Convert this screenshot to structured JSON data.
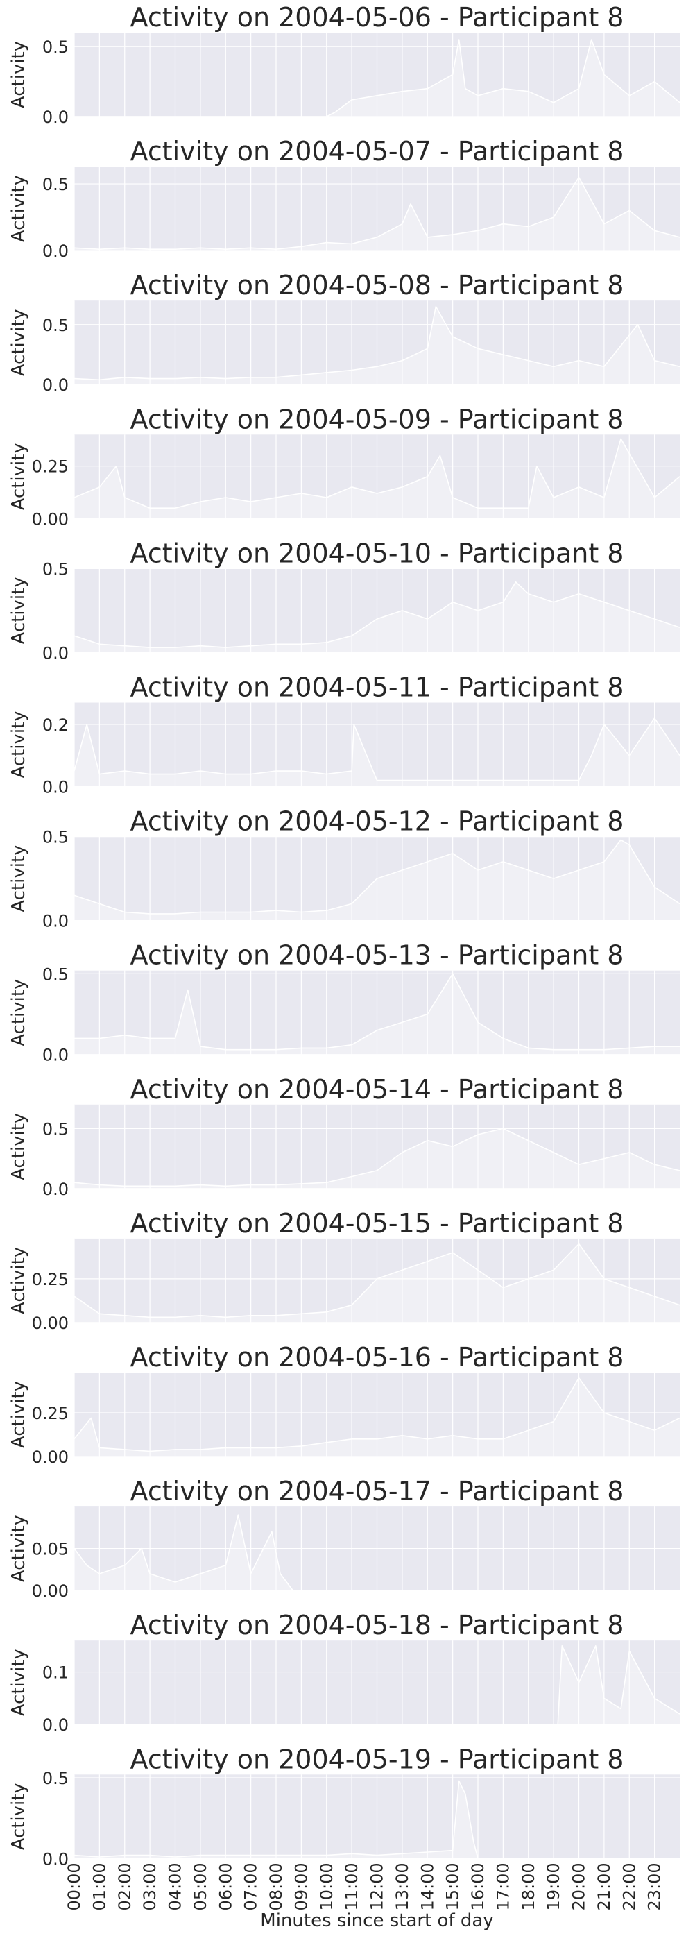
{
  "figure": {
    "x_axis_label": "Minutes since start of day",
    "x_tick_labels": [
      "00:00",
      "01:00",
      "02:00",
      "03:00",
      "04:00",
      "05:00",
      "06:00",
      "07:00",
      "08:00",
      "09:00",
      "10:00",
      "11:00",
      "12:00",
      "13:00",
      "14:00",
      "15:00",
      "16:00",
      "17:00",
      "18:00",
      "19:00",
      "20:00",
      "21:00",
      "22:00",
      "23:00"
    ],
    "y_axis_label": "Activity",
    "colors": {
      "plot_background": "#e8e8f0",
      "grid": "#ffffff",
      "series": "#ffffff",
      "text": "#262626"
    }
  },
  "chart_data": [
    {
      "type": "area",
      "title": "Activity on 2004-05-06 - Participant 8",
      "xlabel": "",
      "ylabel": "Activity",
      "xlim": [
        0,
        1440
      ],
      "ylim": [
        0,
        0.6
      ],
      "y_ticks": [
        0.0,
        0.5
      ],
      "y_tick_labels": [
        "0.0",
        "0.5"
      ],
      "grid": true,
      "series": [
        {
          "x": [
            0,
            60,
            120,
            180,
            240,
            300,
            360,
            420,
            480,
            540,
            600,
            620,
            660,
            720,
            780,
            840,
            900,
            915,
            930,
            960,
            1020,
            1080,
            1140,
            1200,
            1230,
            1260,
            1320,
            1380,
            1440
          ],
          "values": [
            0.0,
            0.0,
            0.0,
            0.0,
            0.0,
            0.0,
            0.0,
            0.0,
            0.0,
            0.0,
            0.0,
            0.03,
            0.12,
            0.15,
            0.18,
            0.2,
            0.3,
            0.55,
            0.2,
            0.15,
            0.2,
            0.18,
            0.1,
            0.2,
            0.55,
            0.3,
            0.15,
            0.25,
            0.1
          ]
        }
      ]
    },
    {
      "type": "area",
      "title": "Activity on 2004-05-07 - Participant 8",
      "xlabel": "",
      "ylabel": "Activity",
      "xlim": [
        0,
        1440
      ],
      "ylim": [
        0,
        0.63
      ],
      "y_ticks": [
        0.0,
        0.5
      ],
      "y_tick_labels": [
        "0.0",
        "0.5"
      ],
      "grid": true,
      "series": [
        {
          "x": [
            0,
            60,
            120,
            180,
            240,
            300,
            360,
            420,
            480,
            540,
            600,
            660,
            720,
            780,
            800,
            840,
            900,
            960,
            1020,
            1080,
            1140,
            1200,
            1260,
            1320,
            1380,
            1440
          ],
          "values": [
            0.02,
            0.01,
            0.02,
            0.01,
            0.01,
            0.02,
            0.01,
            0.02,
            0.01,
            0.03,
            0.06,
            0.05,
            0.1,
            0.2,
            0.35,
            0.1,
            0.12,
            0.15,
            0.2,
            0.18,
            0.25,
            0.55,
            0.2,
            0.3,
            0.15,
            0.1
          ]
        }
      ]
    },
    {
      "type": "area",
      "title": "Activity on 2004-05-08 - Participant 8",
      "xlabel": "",
      "ylabel": "Activity",
      "xlim": [
        0,
        1440
      ],
      "ylim": [
        0,
        0.7
      ],
      "y_ticks": [
        0.0,
        0.5
      ],
      "y_tick_labels": [
        "0.0",
        "0.5"
      ],
      "grid": true,
      "series": [
        {
          "x": [
            0,
            60,
            120,
            180,
            240,
            300,
            360,
            420,
            480,
            540,
            600,
            660,
            720,
            780,
            840,
            860,
            900,
            960,
            1020,
            1080,
            1140,
            1200,
            1260,
            1340,
            1380,
            1440
          ],
          "values": [
            0.05,
            0.04,
            0.06,
            0.05,
            0.05,
            0.06,
            0.05,
            0.06,
            0.06,
            0.08,
            0.1,
            0.12,
            0.15,
            0.2,
            0.3,
            0.65,
            0.4,
            0.3,
            0.25,
            0.2,
            0.15,
            0.2,
            0.15,
            0.5,
            0.2,
            0.15
          ]
        }
      ]
    },
    {
      "type": "area",
      "title": "Activity on 2004-05-09 - Participant 8",
      "xlabel": "",
      "ylabel": "Activity",
      "xlim": [
        0,
        1440
      ],
      "ylim": [
        0,
        0.4
      ],
      "y_ticks": [
        0.0,
        0.25
      ],
      "y_tick_labels": [
        "0.00",
        "0.25"
      ],
      "grid": true,
      "series": [
        {
          "x": [
            0,
            60,
            100,
            120,
            180,
            240,
            300,
            360,
            420,
            480,
            540,
            600,
            660,
            720,
            780,
            840,
            870,
            900,
            960,
            1020,
            1080,
            1100,
            1140,
            1200,
            1260,
            1300,
            1380,
            1440
          ],
          "values": [
            0.1,
            0.15,
            0.25,
            0.1,
            0.05,
            0.05,
            0.08,
            0.1,
            0.08,
            0.1,
            0.12,
            0.1,
            0.15,
            0.12,
            0.15,
            0.2,
            0.3,
            0.1,
            0.05,
            0.05,
            0.05,
            0.25,
            0.1,
            0.15,
            0.1,
            0.38,
            0.1,
            0.2
          ]
        }
      ]
    },
    {
      "type": "area",
      "title": "Activity on 2004-05-10 - Participant 8",
      "xlabel": "",
      "ylabel": "Activity",
      "xlim": [
        0,
        1440
      ],
      "ylim": [
        0,
        0.5
      ],
      "y_ticks": [
        0.0,
        0.5
      ],
      "y_tick_labels": [
        "0.0",
        "0.5"
      ],
      "grid": true,
      "series": [
        {
          "x": [
            0,
            60,
            120,
            180,
            240,
            300,
            360,
            420,
            480,
            540,
            600,
            660,
            720,
            780,
            840,
            900,
            960,
            1020,
            1050,
            1080,
            1140,
            1200,
            1260,
            1320,
            1380,
            1440
          ],
          "values": [
            0.1,
            0.05,
            0.04,
            0.03,
            0.03,
            0.04,
            0.03,
            0.04,
            0.05,
            0.05,
            0.06,
            0.1,
            0.2,
            0.25,
            0.2,
            0.3,
            0.25,
            0.3,
            0.42,
            0.35,
            0.3,
            0.35,
            0.3,
            0.25,
            0.2,
            0.15
          ]
        }
      ]
    },
    {
      "type": "area",
      "title": "Activity on 2004-05-11 - Participant 8",
      "xlabel": "",
      "ylabel": "Activity",
      "xlim": [
        0,
        1440
      ],
      "ylim": [
        0,
        0.27
      ],
      "y_ticks": [
        0.0,
        0.2
      ],
      "y_tick_labels": [
        "0.0",
        "0.2"
      ],
      "grid": true,
      "series": [
        {
          "x": [
            0,
            30,
            60,
            120,
            180,
            240,
            300,
            360,
            420,
            480,
            540,
            600,
            660,
            665,
            720,
            780,
            840,
            900,
            960,
            1020,
            1080,
            1200,
            1230,
            1260,
            1320,
            1380,
            1440
          ],
          "values": [
            0.05,
            0.2,
            0.04,
            0.05,
            0.04,
            0.04,
            0.05,
            0.04,
            0.04,
            0.05,
            0.05,
            0.04,
            0.05,
            0.2,
            0.02,
            0.02,
            0.02,
            0.02,
            0.02,
            0.02,
            0.02,
            0.02,
            0.1,
            0.2,
            0.1,
            0.22,
            0.1
          ]
        }
      ]
    },
    {
      "type": "area",
      "title": "Activity on 2004-05-12 - Participant 8",
      "xlabel": "",
      "ylabel": "Activity",
      "xlim": [
        0,
        1440
      ],
      "ylim": [
        0,
        0.5
      ],
      "y_ticks": [
        0.0,
        0.5
      ],
      "y_tick_labels": [
        "0.0",
        "0.5"
      ],
      "grid": true,
      "series": [
        {
          "x": [
            0,
            60,
            120,
            180,
            240,
            300,
            360,
            420,
            480,
            540,
            600,
            660,
            720,
            780,
            840,
            900,
            960,
            1020,
            1080,
            1140,
            1200,
            1260,
            1300,
            1320,
            1380,
            1440
          ],
          "values": [
            0.15,
            0.1,
            0.05,
            0.04,
            0.04,
            0.05,
            0.05,
            0.05,
            0.06,
            0.05,
            0.06,
            0.1,
            0.25,
            0.3,
            0.35,
            0.4,
            0.3,
            0.35,
            0.3,
            0.25,
            0.3,
            0.35,
            0.48,
            0.45,
            0.2,
            0.1
          ]
        }
      ]
    },
    {
      "type": "area",
      "title": "Activity on 2004-05-13 - Participant 8",
      "xlabel": "",
      "ylabel": "Activity",
      "xlim": [
        0,
        1440
      ],
      "ylim": [
        0,
        0.52
      ],
      "y_ticks": [
        0.0,
        0.5
      ],
      "y_tick_labels": [
        "0.0",
        "0.5"
      ],
      "grid": true,
      "series": [
        {
          "x": [
            0,
            60,
            120,
            180,
            240,
            270,
            300,
            360,
            420,
            480,
            540,
            600,
            660,
            720,
            780,
            840,
            900,
            960,
            1020,
            1080,
            1140,
            1200,
            1260,
            1320,
            1380,
            1440
          ],
          "values": [
            0.1,
            0.1,
            0.12,
            0.1,
            0.1,
            0.4,
            0.05,
            0.03,
            0.03,
            0.03,
            0.04,
            0.04,
            0.06,
            0.15,
            0.2,
            0.25,
            0.5,
            0.2,
            0.1,
            0.04,
            0.03,
            0.03,
            0.03,
            0.04,
            0.05,
            0.05
          ]
        }
      ]
    },
    {
      "type": "area",
      "title": "Activity on 2004-05-14 - Participant 8",
      "xlabel": "",
      "ylabel": "Activity",
      "xlim": [
        0,
        1440
      ],
      "ylim": [
        0,
        0.7
      ],
      "y_ticks": [
        0.0,
        0.5
      ],
      "y_tick_labels": [
        "0.0",
        "0.5"
      ],
      "grid": true,
      "series": [
        {
          "x": [
            0,
            60,
            120,
            180,
            240,
            300,
            360,
            420,
            480,
            540,
            600,
            660,
            720,
            780,
            840,
            900,
            960,
            1020,
            1080,
            1140,
            1200,
            1260,
            1320,
            1380,
            1440
          ],
          "values": [
            0.05,
            0.03,
            0.02,
            0.02,
            0.02,
            0.03,
            0.02,
            0.03,
            0.03,
            0.04,
            0.05,
            0.1,
            0.15,
            0.3,
            0.4,
            0.35,
            0.45,
            0.5,
            0.4,
            0.3,
            0.2,
            0.25,
            0.3,
            0.2,
            0.15
          ]
        }
      ]
    },
    {
      "type": "area",
      "title": "Activity on 2004-05-15 - Participant 8",
      "xlabel": "",
      "ylabel": "Activity",
      "xlim": [
        0,
        1440
      ],
      "ylim": [
        0,
        0.48
      ],
      "y_ticks": [
        0.0,
        0.25
      ],
      "y_tick_labels": [
        "0.00",
        "0.25"
      ],
      "grid": true,
      "series": [
        {
          "x": [
            0,
            60,
            120,
            180,
            240,
            300,
            360,
            420,
            480,
            540,
            600,
            660,
            720,
            780,
            840,
            900,
            960,
            1020,
            1080,
            1140,
            1200,
            1260,
            1320,
            1380,
            1440
          ],
          "values": [
            0.15,
            0.05,
            0.04,
            0.03,
            0.03,
            0.04,
            0.03,
            0.04,
            0.04,
            0.05,
            0.06,
            0.1,
            0.25,
            0.3,
            0.35,
            0.4,
            0.3,
            0.2,
            0.25,
            0.3,
            0.45,
            0.25,
            0.2,
            0.15,
            0.1
          ]
        }
      ]
    },
    {
      "type": "area",
      "title": "Activity on 2004-05-16 - Participant 8",
      "xlabel": "",
      "ylabel": "Activity",
      "xlim": [
        0,
        1440
      ],
      "ylim": [
        0,
        0.48
      ],
      "y_ticks": [
        0.0,
        0.25
      ],
      "y_tick_labels": [
        "0.00",
        "0.25"
      ],
      "grid": true,
      "series": [
        {
          "x": [
            0,
            40,
            60,
            120,
            180,
            240,
            300,
            360,
            420,
            480,
            540,
            600,
            660,
            720,
            780,
            840,
            900,
            960,
            1020,
            1080,
            1140,
            1200,
            1260,
            1320,
            1380,
            1440
          ],
          "values": [
            0.1,
            0.22,
            0.05,
            0.04,
            0.03,
            0.04,
            0.04,
            0.05,
            0.05,
            0.05,
            0.06,
            0.08,
            0.1,
            0.1,
            0.12,
            0.1,
            0.12,
            0.1,
            0.1,
            0.15,
            0.2,
            0.45,
            0.25,
            0.2,
            0.15,
            0.22
          ]
        }
      ]
    },
    {
      "type": "area",
      "title": "Activity on 2004-05-17 - Participant 8",
      "xlabel": "",
      "ylabel": "Activity",
      "xlim": [
        0,
        1440
      ],
      "ylim": [
        0,
        0.1
      ],
      "y_ticks": [
        0.0,
        0.05
      ],
      "y_tick_labels": [
        "0.00",
        "0.05"
      ],
      "grid": true,
      "series": [
        {
          "x": [
            0,
            30,
            60,
            120,
            160,
            180,
            240,
            300,
            360,
            390,
            420,
            470,
            490,
            520,
            600,
            700,
            800,
            900,
            1000,
            1100,
            1200,
            1300,
            1440
          ],
          "values": [
            0.05,
            0.03,
            0.02,
            0.03,
            0.05,
            0.02,
            0.01,
            0.02,
            0.03,
            0.09,
            0.02,
            0.07,
            0.02,
            0.0,
            0.0,
            0.0,
            0.0,
            0.0,
            0.0,
            0.0,
            0.0,
            0.0,
            0.0
          ]
        }
      ]
    },
    {
      "type": "area",
      "title": "Activity on 2004-05-18 - Participant 8",
      "xlabel": "",
      "ylabel": "Activity",
      "xlim": [
        0,
        1440
      ],
      "ylim": [
        0,
        0.16
      ],
      "y_ticks": [
        0.0,
        0.1
      ],
      "y_tick_labels": [
        "0.0",
        "0.1"
      ],
      "grid": true,
      "series": [
        {
          "x": [
            0,
            120,
            240,
            360,
            480,
            600,
            720,
            840,
            960,
            1080,
            1150,
            1160,
            1200,
            1240,
            1260,
            1300,
            1320,
            1380,
            1440
          ],
          "values": [
            0.0,
            0.0,
            0.0,
            0.0,
            0.0,
            0.0,
            0.0,
            0.0,
            0.0,
            0.0,
            0.0,
            0.15,
            0.08,
            0.15,
            0.05,
            0.03,
            0.14,
            0.05,
            0.02
          ]
        }
      ]
    },
    {
      "type": "area",
      "title": "Activity on 2004-05-19 - Participant 8",
      "xlabel": "Minutes since start of day",
      "ylabel": "Activity",
      "xlim": [
        0,
        1440
      ],
      "ylim": [
        0,
        0.52
      ],
      "y_ticks": [
        0.0,
        0.5
      ],
      "y_tick_labels": [
        "0.0",
        "0.5"
      ],
      "grid": true,
      "series": [
        {
          "x": [
            0,
            60,
            120,
            180,
            240,
            300,
            360,
            420,
            480,
            540,
            600,
            660,
            720,
            780,
            840,
            900,
            915,
            930,
            950,
            960,
            1080,
            1200,
            1320,
            1440
          ],
          "values": [
            0.02,
            0.01,
            0.02,
            0.02,
            0.01,
            0.02,
            0.02,
            0.02,
            0.02,
            0.02,
            0.02,
            0.03,
            0.02,
            0.03,
            0.04,
            0.05,
            0.48,
            0.4,
            0.1,
            0.0,
            0.0,
            0.0,
            0.0,
            0.0
          ]
        }
      ]
    }
  ]
}
